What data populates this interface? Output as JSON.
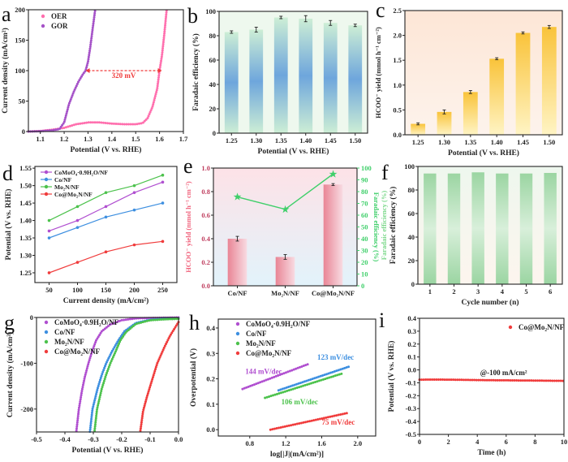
{
  "chart_data": [
    {
      "panel": "a",
      "type": "scatter",
      "xlabel": "Potential (V vs. RHE)",
      "ylabel": "Current density (mA/cm²)",
      "xlim": [
        1.05,
        1.7
      ],
      "ylim": [
        0,
        200
      ],
      "xticks": [
        "1.1",
        "1.2",
        "1.3",
        "1.4",
        "1.5",
        "1.6",
        "1.7"
      ],
      "yticks": [
        "0",
        "50",
        "100",
        "150",
        "200"
      ],
      "legend": "top-left",
      "series": [
        {
          "name": "OER",
          "color": "#ff6fae",
          "x": [
            1.05,
            1.1,
            1.15,
            1.2,
            1.25,
            1.3,
            1.35,
            1.4,
            1.45,
            1.5,
            1.53,
            1.55,
            1.57,
            1.59,
            1.6,
            1.61,
            1.62,
            1.63
          ],
          "y": [
            0,
            1,
            3,
            6,
            12,
            15,
            15,
            13,
            12,
            12,
            14,
            22,
            40,
            70,
            100,
            125,
            160,
            200
          ]
        },
        {
          "name": "GOR",
          "color": "#a552c8",
          "x": [
            1.05,
            1.1,
            1.15,
            1.18,
            1.2,
            1.22,
            1.24,
            1.26,
            1.28,
            1.29,
            1.3,
            1.31,
            1.32,
            1.33
          ],
          "y": [
            0,
            0.5,
            2,
            4,
            15,
            45,
            65,
            82,
            95,
            100,
            115,
            140,
            170,
            200
          ]
        }
      ],
      "annotations": [
        {
          "text": "320 mV",
          "x": 1.45,
          "y": 88,
          "color": "#f03c3c",
          "arrow_from": 1.29,
          "arrow_to": 1.61,
          "arrow_y": 100
        }
      ]
    },
    {
      "panel": "b",
      "type": "bar",
      "xlabel": "Potential (V vs. RHE)",
      "ylabel": "Faradaic efficiency (%)",
      "ylim": [
        0,
        100
      ],
      "categories": [
        "1.25",
        "1.30",
        "1.35",
        "1.40",
        "1.45",
        "1.50"
      ],
      "xticks": [
        "1.25",
        "1.30",
        "1.35",
        "1.40",
        "1.45",
        "1.50"
      ],
      "yticks": [
        "0",
        "20",
        "40",
        "60",
        "80",
        "100"
      ],
      "values": [
        83,
        85,
        95,
        94,
        90.5,
        88.5
      ],
      "errors": [
        1,
        2,
        1,
        2.5,
        2,
        1
      ],
      "background": [
        "#eef8ee",
        "#eef8ee"
      ],
      "bar_colors": [
        "#cdeed5",
        "#6ea6dc",
        "#cdeed5"
      ]
    },
    {
      "panel": "c",
      "type": "bar",
      "xlabel": "Potential (V vs. RHE)",
      "ylabel": "HCOO⁻ yield (mmol h⁻¹ cm⁻²)",
      "ylim": [
        0,
        2.5
      ],
      "categories": [
        "1.25",
        "1.30",
        "1.35",
        "1.40",
        "1.45",
        "1.50"
      ],
      "xticks": [
        "1.25",
        "1.30",
        "1.35",
        "1.40",
        "1.45",
        "1.50"
      ],
      "yticks": [
        "0.0",
        "0.5",
        "1.0",
        "1.5",
        "2.0",
        "2.5"
      ],
      "values": [
        0.22,
        0.46,
        0.86,
        1.53,
        2.05,
        2.17
      ],
      "errors": [
        0.02,
        0.04,
        0.03,
        0.02,
        0.02,
        0.03
      ],
      "background": [
        "#fde6d6",
        "#fdf3ec"
      ],
      "bar_colors": [
        "#f9c33a",
        "#fff4c4"
      ]
    },
    {
      "panel": "d",
      "type": "line",
      "xlabel": "Current density (mA/cm²)",
      "ylabel": "Potential (V vs. RHE)",
      "xlim": [
        25,
        275
      ],
      "ylim": [
        1.222,
        1.555
      ],
      "xticks": [
        "50",
        "100",
        "150",
        "200",
        "250"
      ],
      "yticks": [
        "1.25",
        "1.30",
        "1.35",
        "1.40",
        "1.45",
        "1.50",
        "1.55"
      ],
      "legend": "top-left",
      "series": [
        {
          "name": "CoMoO₄·0.9H₂O/NF",
          "color": "#b04fd0",
          "x": [
            50,
            100,
            150,
            200,
            250
          ],
          "y": [
            1.37,
            1.4,
            1.44,
            1.48,
            1.51
          ]
        },
        {
          "name": "Co/NF",
          "color": "#3d8fe0",
          "x": [
            50,
            100,
            150,
            200,
            250
          ],
          "y": [
            1.35,
            1.38,
            1.41,
            1.43,
            1.45
          ]
        },
        {
          "name": "Mo₂N/NF",
          "color": "#4cc24c",
          "x": [
            50,
            100,
            150,
            200,
            250
          ],
          "y": [
            1.4,
            1.44,
            1.48,
            1.5,
            1.53
          ]
        },
        {
          "name": "Co@Mo₂N/NF",
          "color": "#f03c3c",
          "x": [
            50,
            100,
            150,
            200,
            250
          ],
          "y": [
            1.25,
            1.28,
            1.31,
            1.33,
            1.34
          ]
        }
      ]
    },
    {
      "panel": "e",
      "type": "bar",
      "xlabel": "",
      "ylabel": "HCOO⁻ yield (mmol h⁻¹ cm⁻²)",
      "y2label": "Faradaic efficiency (%)",
      "ylim": [
        0,
        1.0
      ],
      "y2lim": [
        0,
        100
      ],
      "categories": [
        "Co/NF",
        "Mo₂N/NF",
        "Co@Mo₂N/NF"
      ],
      "xticks": [
        "Co/NF",
        "Mo₂N/NF",
        "Co@Mo₂N/NF"
      ],
      "yticks": [
        "0.0",
        "0.2",
        "0.4",
        "0.6",
        "0.8",
        "1.0"
      ],
      "y2ticks": [
        "0",
        "10",
        "20",
        "30",
        "40",
        "50",
        "60",
        "70",
        "80",
        "90",
        "100"
      ],
      "values": [
        0.4,
        0.245,
        0.86
      ],
      "errors": [
        0.02,
        0.02,
        0.008
      ],
      "line_values": [
        75.5,
        65,
        95
      ],
      "background": [
        "#fde2e7",
        "#e2f3fb"
      ],
      "bar_colors": [
        "#e98595",
        "#f8dbe2"
      ],
      "ylabel_color": "#f0607a",
      "y2_color": "#3fcf6a"
    },
    {
      "panel": "f",
      "type": "bar",
      "xlabel": "Cycle number (n)",
      "ylabel": "Faradaic efficiency (%)",
      "ylim": [
        0,
        100
      ],
      "categories": [
        "1",
        "2",
        "3",
        "4",
        "5",
        "6"
      ],
      "xticks": [
        "1",
        "2",
        "3",
        "4",
        "5",
        "6"
      ],
      "yticks": [
        "0",
        "20",
        "40",
        "60",
        "80",
        "100"
      ],
      "values": [
        94,
        94,
        95,
        94,
        94,
        94.5
      ],
      "errors": [],
      "background": [
        "#eef7ee",
        "#fdf5ee"
      ],
      "bar_colors": [
        "#9bd5a2",
        "#d8efda",
        "#9bd5a2"
      ],
      "side_label": "Faradaic efficiency (%)"
    },
    {
      "panel": "g",
      "type": "scatter",
      "xlabel": "Potential (V vs. RHE)",
      "ylabel": "Current density (mA/cm²)",
      "xlim": [
        -0.5,
        0.0
      ],
      "ylim": [
        -250,
        0
      ],
      "xticks": [
        "-0.5",
        "-0.4",
        "-0.3",
        "-0.2",
        "-0.1",
        "0.0"
      ],
      "yticks": [
        "-200",
        "-100",
        "0"
      ],
      "legend": "top-left",
      "series": [
        {
          "name": "CoMoO₄·0.9H₂O/NF",
          "color": "#b04fd0",
          "x": [
            0,
            -0.1,
            -0.15,
            -0.2,
            -0.24,
            -0.27,
            -0.29,
            -0.305,
            -0.317,
            -0.33,
            -0.34,
            -0.351,
            -0.36
          ],
          "y": [
            0,
            -1,
            -2,
            -6,
            -15,
            -30,
            -50,
            -75,
            -100,
            -130,
            -160,
            -200,
            -250
          ]
        },
        {
          "name": "Co/NF",
          "color": "#3d8fe0",
          "x": [
            0,
            -0.05,
            -0.1,
            -0.15,
            -0.19,
            -0.212,
            -0.235,
            -0.255,
            -0.27,
            -0.285,
            -0.303,
            -0.312
          ],
          "y": [
            -2,
            -3,
            -5,
            -12,
            -30,
            -50,
            -75,
            -100,
            -125,
            -155,
            -200,
            -250
          ]
        },
        {
          "name": "Mo₂N/NF",
          "color": "#4cc24c",
          "x": [
            0,
            -0.05,
            -0.1,
            -0.15,
            -0.185,
            -0.205,
            -0.222,
            -0.24,
            -0.255,
            -0.27,
            -0.287,
            -0.296
          ],
          "y": [
            -3,
            -4,
            -6,
            -14,
            -32,
            -50,
            -75,
            -100,
            -125,
            -155,
            -200,
            -250
          ]
        },
        {
          "name": "Co@Mo₂N/NF",
          "color": "#f03c3c",
          "x": [
            0,
            -0.01,
            -0.03,
            -0.05,
            -0.075,
            -0.095,
            -0.112,
            -0.125,
            -0.135
          ],
          "y": [
            -10,
            -20,
            -40,
            -65,
            -100,
            -140,
            -175,
            -205,
            -250
          ]
        }
      ]
    },
    {
      "panel": "h",
      "type": "scatter",
      "xlabel": "log[|J|(mA/cm²)]",
      "ylabel": "Overpotential (V)",
      "xlim": [
        0.45,
        2.2
      ],
      "ylim": [
        -0.025,
        0.435
      ],
      "xticks": [
        "0.8",
        "1.2",
        "1.6",
        "2.0"
      ],
      "yticks": [
        "0.0",
        "0.1",
        "0.2",
        "0.3",
        "0.4"
      ],
      "legend": "top-left",
      "series": [
        {
          "name": "CoMoO₄·0.9H₂O/NF",
          "color": "#b04fd0",
          "x": [
            0.72,
            1.45
          ],
          "y": [
            0.16,
            0.258
          ]
        },
        {
          "name": "Co/NF",
          "color": "#3d8fe0",
          "x": [
            1.12,
            1.92
          ],
          "y": [
            0.155,
            0.25
          ]
        },
        {
          "name": "Mo₂N/NF",
          "color": "#4cc24c",
          "x": [
            0.97,
            1.82
          ],
          "y": [
            0.125,
            0.22
          ]
        },
        {
          "name": "Co@Mo₂N/NF",
          "color": "#f03c3c",
          "x": [
            1.03,
            1.88
          ],
          "y": [
            0.0,
            0.065
          ]
        }
      ],
      "annotations": [
        {
          "text": "144 mV/dec",
          "x": 0.75,
          "y": 0.22,
          "color": "#b04fd0"
        },
        {
          "text": "123 mV/dec",
          "x": 1.55,
          "y": 0.275,
          "color": "#3d8fe0"
        },
        {
          "text": "106 mV/dec",
          "x": 1.15,
          "y": 0.1,
          "color": "#4cc24c"
        },
        {
          "text": "75 mV/dec",
          "x": 1.6,
          "y": 0.02,
          "color": "#f03c3c"
        }
      ]
    },
    {
      "panel": "i",
      "type": "scatter",
      "xlabel": "Time (h)",
      "ylabel": "Potential (V vs. RHE)",
      "xlim": [
        0,
        10
      ],
      "ylim": [
        -0.5,
        0.4
      ],
      "xticks": [
        "0",
        "2",
        "4",
        "6",
        "8",
        "10"
      ],
      "yticks": [
        "-0.5",
        "-0.4",
        "-0.3",
        "-0.2",
        "-0.1",
        "0.0",
        "0.1",
        "0.2",
        "0.3",
        "0.4"
      ],
      "legend": "top-right",
      "series": [
        {
          "name": "Co@Mo₂N/NF",
          "color": "#f03c3c",
          "x": [
            0,
            1,
            2,
            3,
            4,
            5,
            6,
            7,
            8,
            9,
            10
          ],
          "y": [
            -0.076,
            -0.075,
            -0.076,
            -0.077,
            -0.079,
            -0.08,
            -0.081,
            -0.082,
            -0.083,
            -0.084,
            -0.085
          ]
        }
      ],
      "annotations": [
        {
          "text": "@-100 mA/cm²",
          "x": 4.2,
          "y": -0.04,
          "color": "#222222"
        }
      ]
    }
  ]
}
